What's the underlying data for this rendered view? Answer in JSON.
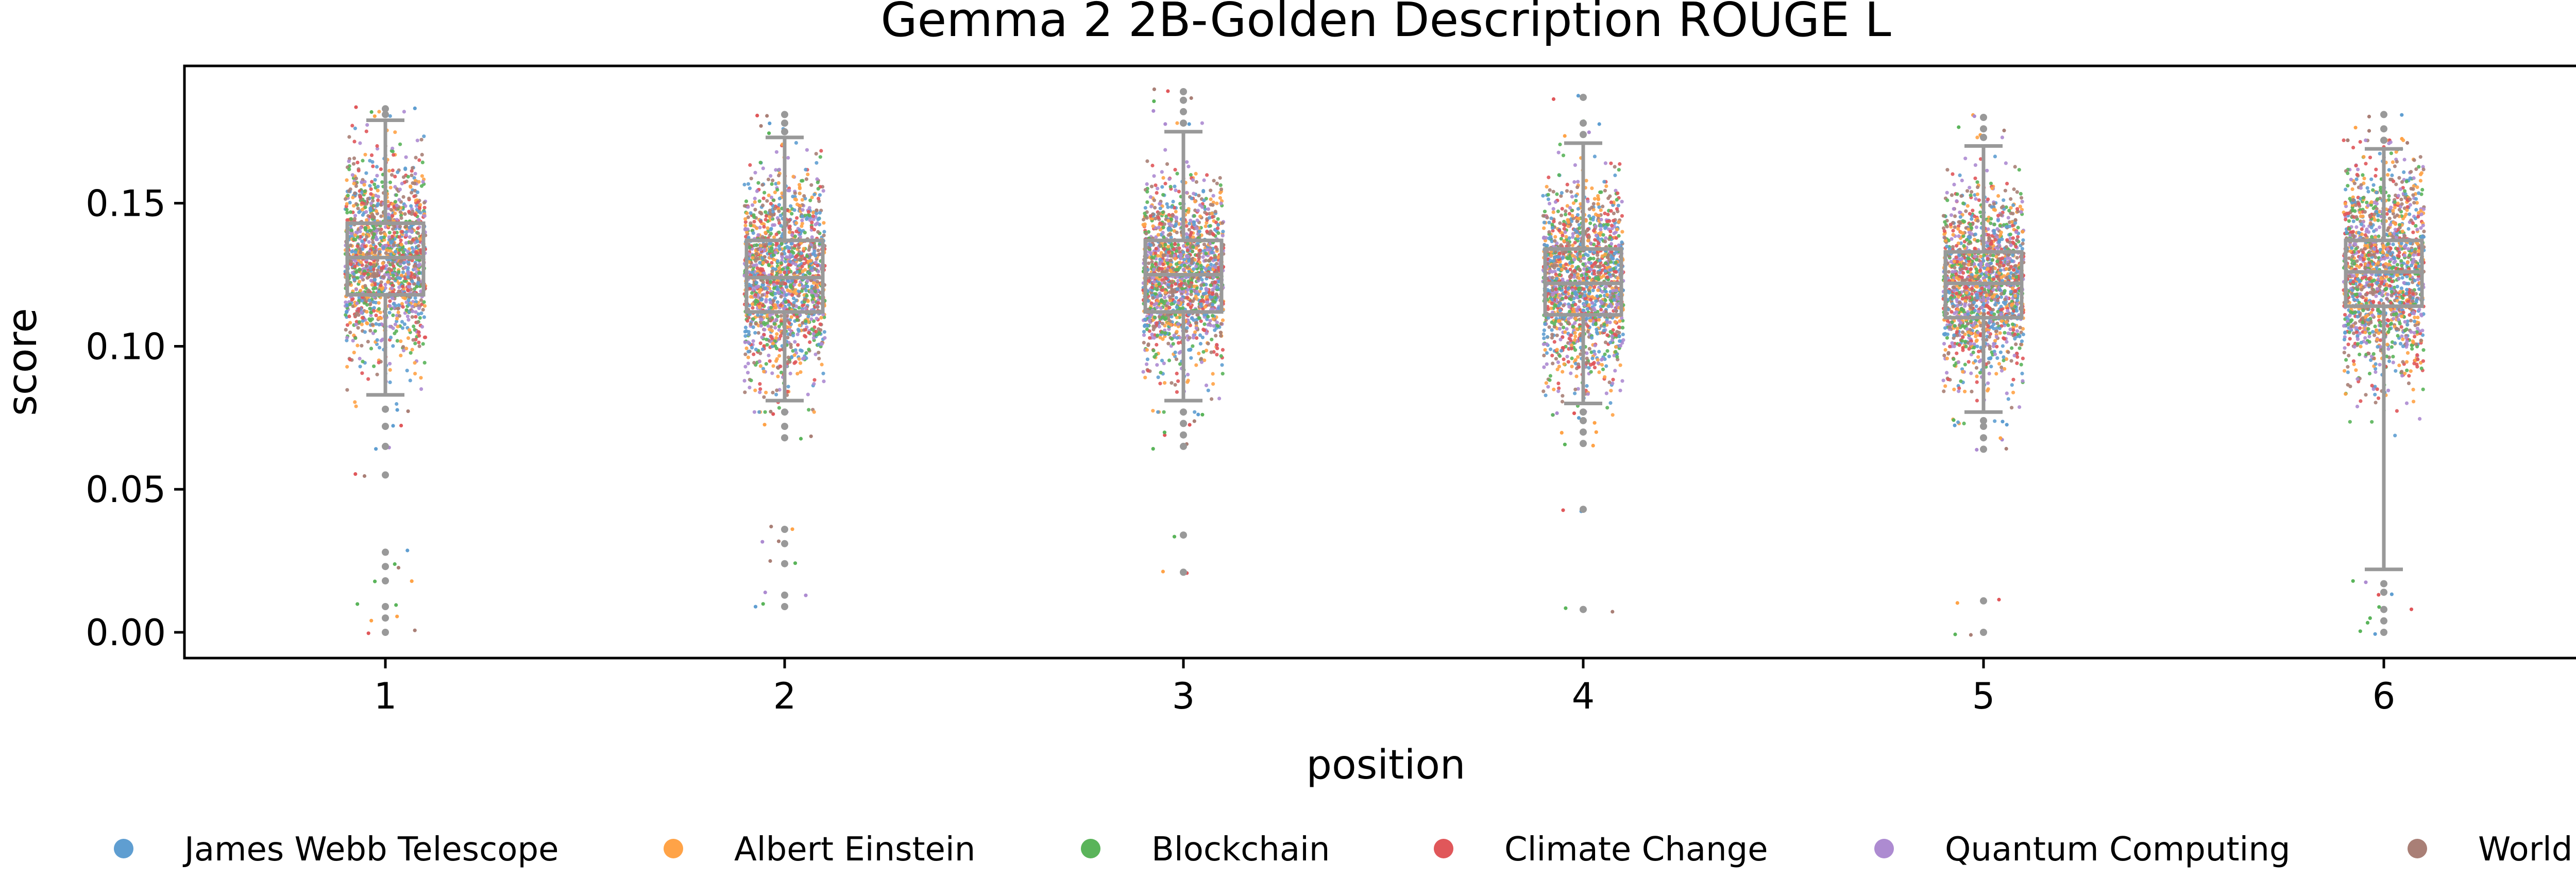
{
  "chart_data": {
    "type": "scatter",
    "title": "Gemma 2 2B-Golden Description ROUGE L",
    "xlabel": "position",
    "ylabel": "score",
    "categories": [
      "1",
      "2",
      "3",
      "4",
      "5",
      "6"
    ],
    "yticks": [
      "0.00",
      "0.05",
      "0.10",
      "0.15"
    ],
    "ylim": [
      -0.009,
      0.198
    ],
    "grid": false,
    "legend_position": "bottom",
    "series": [
      {
        "name": "James Webb Telescope",
        "color": "#5f9ed1"
      },
      {
        "name": "Albert Einstein",
        "color": "#ffa347"
      },
      {
        "name": "Blockchain",
        "color": "#5ab45a"
      },
      {
        "name": "Climate Change",
        "color": "#e0575a"
      },
      {
        "name": "Quantum Computing",
        "color": "#ad8bd1"
      },
      {
        "name": "World War II",
        "color": "#a97f76"
      }
    ],
    "box_stats": [
      {
        "position": "1",
        "whisker_low": 0.083,
        "q1": 0.118,
        "median": 0.131,
        "q3": 0.143,
        "whisker_high": 0.179,
        "spread": 0.017,
        "outliers": [
          0.0,
          0.005,
          0.009,
          0.018,
          0.023,
          0.028,
          0.055,
          0.065,
          0.072,
          0.078,
          0.181,
          0.183
        ]
      },
      {
        "position": "2",
        "whisker_low": 0.081,
        "q1": 0.112,
        "median": 0.124,
        "q3": 0.137,
        "whisker_high": 0.173,
        "spread": 0.017,
        "outliers": [
          0.009,
          0.013,
          0.024,
          0.031,
          0.036,
          0.068,
          0.072,
          0.077,
          0.175,
          0.178,
          0.181
        ]
      },
      {
        "position": "3",
        "whisker_low": 0.081,
        "q1": 0.112,
        "median": 0.125,
        "q3": 0.137,
        "whisker_high": 0.175,
        "spread": 0.016,
        "outliers": [
          0.021,
          0.034,
          0.065,
          0.069,
          0.073,
          0.077,
          0.178,
          0.182,
          0.186,
          0.189
        ]
      },
      {
        "position": "4",
        "whisker_low": 0.08,
        "q1": 0.111,
        "median": 0.122,
        "q3": 0.134,
        "whisker_high": 0.171,
        "spread": 0.016,
        "outliers": [
          0.008,
          0.043,
          0.066,
          0.07,
          0.074,
          0.077,
          0.174,
          0.178,
          0.187
        ]
      },
      {
        "position": "5",
        "whisker_low": 0.077,
        "q1": 0.11,
        "median": 0.122,
        "q3": 0.133,
        "whisker_high": 0.17,
        "spread": 0.016,
        "outliers": [
          0.0,
          0.011,
          0.064,
          0.068,
          0.072,
          0.074,
          0.173,
          0.176,
          0.18
        ]
      },
      {
        "position": "6",
        "whisker_low": 0.022,
        "q1": 0.114,
        "median": 0.126,
        "q3": 0.137,
        "whisker_high": 0.169,
        "spread": 0.019,
        "outliers": [
          0.0,
          0.004,
          0.008,
          0.014,
          0.017,
          0.172,
          0.176,
          0.181
        ]
      }
    ]
  }
}
